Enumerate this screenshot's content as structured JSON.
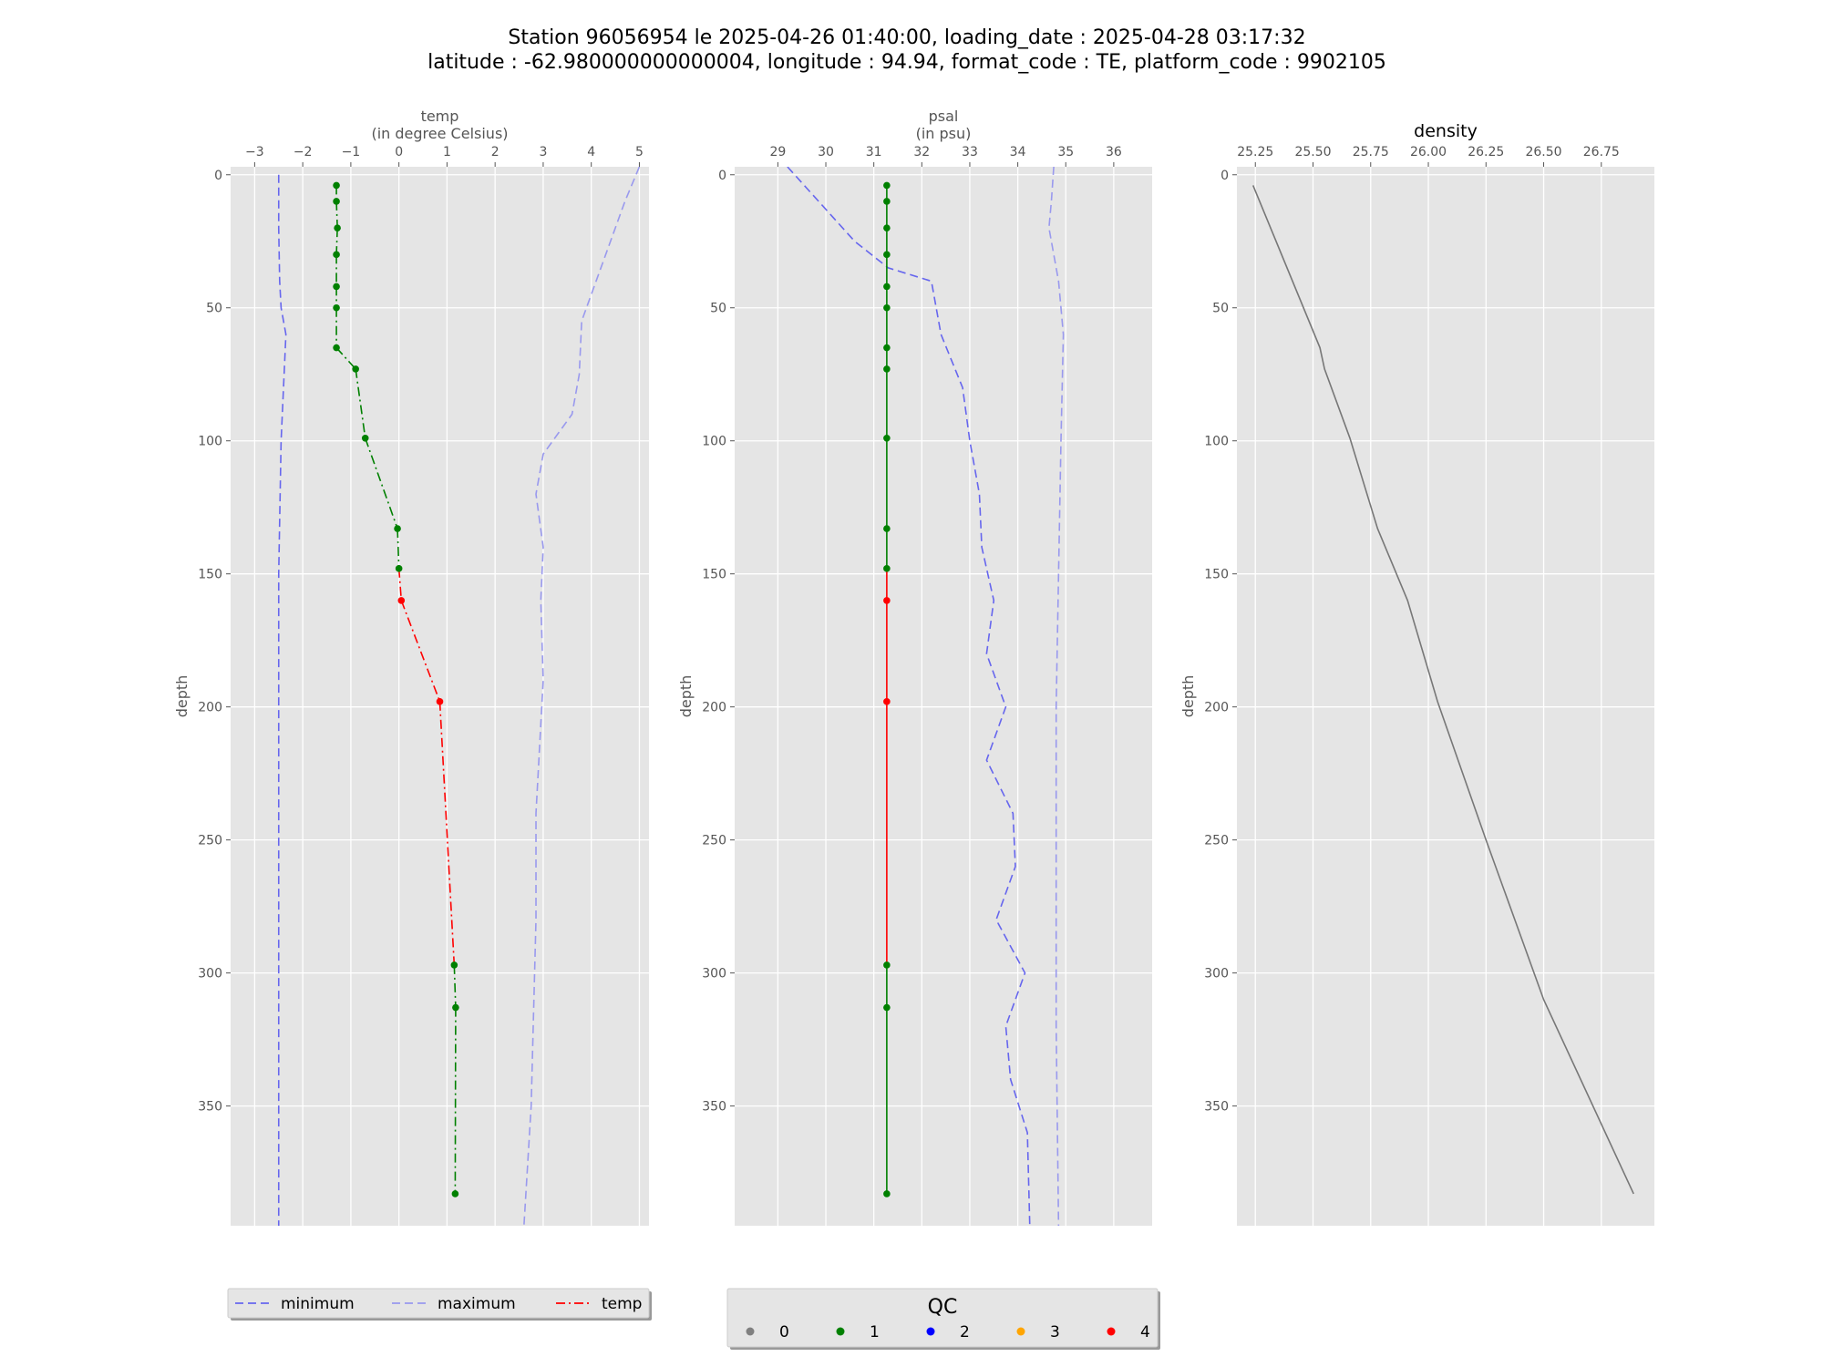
{
  "figure": {
    "title_line1": "Station 96056954 le 2025-04-26 01:40:00, loading_date : 2025-04-28 03:17:32",
    "title_line2": "latitude : -62.980000000000004, longitude : 94.94, format_code : TE, platform_code : 9902105"
  },
  "colors": {
    "background": "#e5e5e5",
    "grid": "#ffffff",
    "minimum": "#6666ee",
    "maximum": "#9999ee",
    "qc1": "#008000",
    "qc4": "#ff0000",
    "density": "#777777"
  },
  "chart_data": [
    {
      "type": "line",
      "title": "temp",
      "subtitle": "(in degree Celsius)",
      "ylabel": "depth",
      "xlim": [
        -3.5,
        5.2
      ],
      "ylim": [
        395,
        -3
      ],
      "xticks": [
        -3,
        -2,
        -1,
        0,
        1,
        2,
        3,
        4,
        5
      ],
      "xtick_labels": [
        "−3",
        "−2",
        "−1",
        "0",
        "1",
        "2",
        "3",
        "4",
        "5"
      ],
      "yticks": [
        0,
        50,
        100,
        150,
        200,
        250,
        300,
        350
      ],
      "yticks_labels": [
        "0",
        "50",
        "100",
        "150",
        "200",
        "250",
        "300",
        "350"
      ],
      "series": [
        {
          "name": "minimum",
          "style": "dashed",
          "x": [
            -2.5,
            -2.5,
            -2.48,
            -2.45,
            -2.35,
            -2.4,
            -2.45,
            -2.5,
            -2.5,
            -2.5,
            -2.5
          ],
          "y": [
            0,
            20,
            40,
            50,
            60,
            80,
            100,
            150,
            200,
            300,
            395
          ]
        },
        {
          "name": "maximum",
          "style": "dashed",
          "x": [
            5.0,
            4.7,
            4.4,
            4.1,
            3.8,
            3.75,
            3.6,
            3.0,
            2.85,
            3.0,
            2.95,
            3.0,
            2.85,
            2.85,
            2.75,
            2.6
          ],
          "y": [
            -3,
            10,
            25,
            40,
            55,
            75,
            90,
            105,
            120,
            140,
            160,
            190,
            240,
            280,
            350,
            395
          ]
        },
        {
          "name": "temp",
          "style": "dashdot",
          "x": [
            -1.3,
            -1.3,
            -1.28,
            -1.3,
            -1.3,
            -1.3,
            -1.3,
            -0.9,
            -0.7,
            -0.03,
            0.0,
            0.05,
            0.85,
            1.15,
            1.18,
            1.17
          ],
          "y": [
            4,
            10,
            20,
            30,
            42,
            50,
            65,
            73,
            99,
            133,
            148,
            160,
            198,
            297,
            313,
            383
          ],
          "qc": [
            1,
            1,
            1,
            1,
            1,
            1,
            1,
            1,
            1,
            1,
            1,
            4,
            4,
            1,
            1,
            1
          ]
        }
      ]
    },
    {
      "type": "line",
      "title": "psal",
      "subtitle": "(in psu)",
      "ylabel": "depth",
      "xlim": [
        28.1,
        36.8
      ],
      "ylim": [
        395,
        -3
      ],
      "xticks": [
        29,
        30,
        31,
        32,
        33,
        34,
        35,
        36
      ],
      "xtick_labels": [
        "29",
        "30",
        "31",
        "32",
        "33",
        "34",
        "35",
        "36"
      ],
      "yticks": [
        0,
        50,
        100,
        150,
        200,
        250,
        300,
        350
      ],
      "yticks_labels": [
        "0",
        "50",
        "100",
        "150",
        "200",
        "250",
        "300",
        "350"
      ],
      "series": [
        {
          "name": "minimum",
          "style": "dashed",
          "x": [
            29.2,
            29.6,
            30.1,
            30.6,
            31.3,
            32.2,
            32.4,
            32.85,
            33.0,
            33.2,
            33.25,
            33.5,
            33.35,
            33.75,
            33.35,
            33.9,
            33.95,
            33.55,
            34.15,
            33.75,
            33.85,
            34.2,
            34.25
          ],
          "y": [
            -3,
            5,
            15,
            25,
            35,
            40,
            60,
            80,
            100,
            120,
            140,
            160,
            180,
            200,
            220,
            240,
            260,
            280,
            300,
            320,
            340,
            360,
            395
          ]
        },
        {
          "name": "maximum",
          "style": "dashed",
          "x": [
            34.75,
            34.7,
            34.65,
            34.85,
            34.95,
            34.9,
            34.85,
            34.8,
            34.8,
            34.8,
            34.85
          ],
          "y": [
            -3,
            10,
            20,
            40,
            60,
            100,
            150,
            200,
            260,
            320,
            395
          ]
        },
        {
          "name": "psal",
          "style": "solid",
          "x": [
            31.27,
            31.27,
            31.27,
            31.27,
            31.27,
            31.27,
            31.27,
            31.27,
            31.27,
            31.27,
            31.27,
            31.27,
            31.27,
            31.27,
            31.27,
            31.27
          ],
          "y": [
            4,
            10,
            20,
            30,
            42,
            50,
            65,
            73,
            99,
            133,
            148,
            160,
            198,
            297,
            313,
            383
          ],
          "qc": [
            1,
            1,
            1,
            1,
            1,
            1,
            1,
            1,
            1,
            1,
            1,
            4,
            4,
            1,
            1,
            1
          ]
        }
      ]
    },
    {
      "type": "line",
      "title": "density",
      "ylabel": "depth",
      "xlim": [
        25.17,
        26.98
      ],
      "ylim": [
        395,
        -3
      ],
      "xticks": [
        25.25,
        25.5,
        25.75,
        26.0,
        26.25,
        26.5,
        26.75
      ],
      "xtick_labels": [
        "25.25",
        "25.50",
        "25.75",
        "26.00",
        "26.25",
        "26.50",
        "26.75"
      ],
      "yticks": [
        0,
        50,
        100,
        150,
        200,
        250,
        300,
        350
      ],
      "yticks_labels": [
        "0",
        "50",
        "100",
        "150",
        "200",
        "250",
        "300",
        "350"
      ],
      "series": [
        {
          "name": "density",
          "style": "solid",
          "x": [
            25.24,
            25.53,
            25.55,
            25.66,
            25.78,
            25.91,
            26.04,
            26.25,
            26.5,
            26.89
          ],
          "y": [
            4,
            65,
            73,
            99,
            133,
            160,
            198,
            250,
            310,
            383
          ]
        }
      ]
    }
  ],
  "legend_lines": {
    "items": [
      {
        "label": "minimum",
        "style": "dashed",
        "color_key": "minimum"
      },
      {
        "label": "maximum",
        "style": "dashed",
        "color_key": "maximum"
      },
      {
        "label": "temp",
        "style": "dashdot",
        "color_key": "qc4"
      }
    ]
  },
  "legend_qc": {
    "title": "QC",
    "items": [
      {
        "label": "0",
        "color": "#808080"
      },
      {
        "label": "1",
        "color": "#008000"
      },
      {
        "label": "2",
        "color": "#0000ff"
      },
      {
        "label": "3",
        "color": "#ffa500"
      },
      {
        "label": "4",
        "color": "#ff0000"
      }
    ]
  }
}
